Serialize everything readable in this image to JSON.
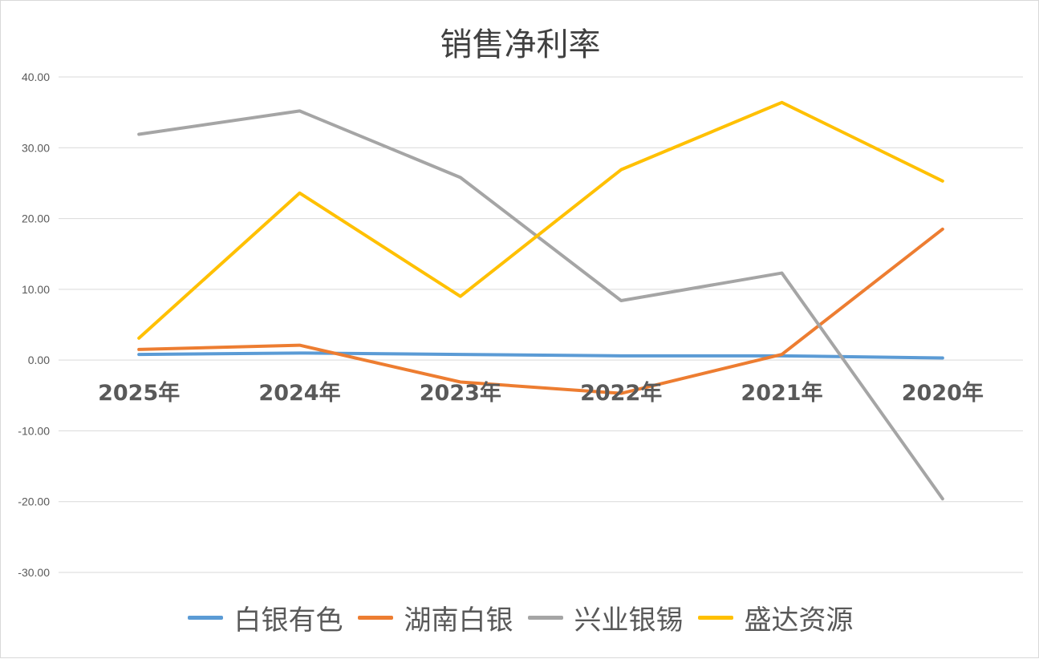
{
  "chart_data": {
    "type": "line",
    "title": "销售净利率",
    "xlabel": "",
    "ylabel": "",
    "categories": [
      "2025年",
      "2024年",
      "2023年",
      "2022年",
      "2021年",
      "2020年"
    ],
    "ylim": [
      -30,
      40
    ],
    "yticks": [
      "40.00",
      "30.00",
      "20.00",
      "10.00",
      "0.00",
      "-10.00",
      "-20.00",
      "-30.00"
    ],
    "grid": true,
    "legend_position": "bottom",
    "series": [
      {
        "name": "白银有色",
        "color": "#5B9BD5",
        "values": [
          0.8,
          1.0,
          0.8,
          0.6,
          0.6,
          0.3
        ]
      },
      {
        "name": "湖南白银",
        "color": "#ED7D31",
        "values": [
          1.5,
          2.1,
          -3.1,
          -4.7,
          0.8,
          18.5
        ]
      },
      {
        "name": "兴业银锡",
        "color": "#A5A5A5",
        "values": [
          31.9,
          35.2,
          25.8,
          8.4,
          12.3,
          -19.6
        ]
      },
      {
        "name": "盛达资源",
        "color": "#FFC000",
        "values": [
          3.1,
          23.6,
          9.0,
          26.9,
          36.4,
          25.3
        ]
      }
    ]
  }
}
